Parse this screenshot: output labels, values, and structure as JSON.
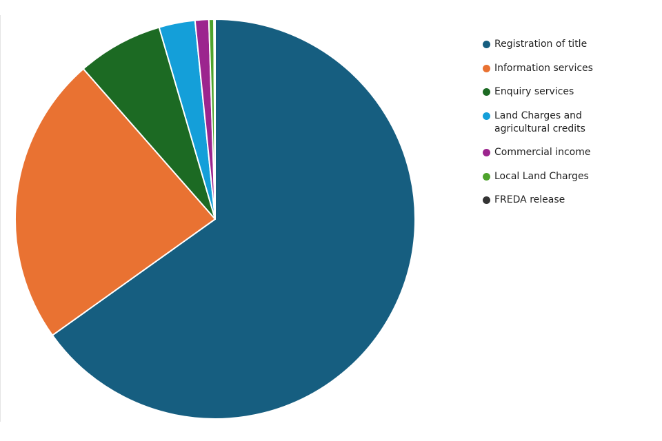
{
  "chart_data": {
    "type": "pie",
    "title": "",
    "slices": [
      {
        "label": "Registration of title",
        "value": 64.8,
        "color": "#165e80"
      },
      {
        "label": "Information services",
        "value": 23.3,
        "color": "#e97232"
      },
      {
        "label": "Enquiry services",
        "value": 6.9,
        "color": "#1c6a23"
      },
      {
        "label": "Land Charges and agricultural credits",
        "value": 2.9,
        "color": "#149fd9"
      },
      {
        "label": "Commercial income",
        "value": 1.1,
        "color": "#9c258e"
      },
      {
        "label": "Local Land Charges",
        "value": 0.4,
        "color": "#4ea32c"
      },
      {
        "label": "FREDA release",
        "value": 0.1,
        "color": "#333333"
      }
    ],
    "legend_position": "right",
    "start_angle": "top, clockwise"
  }
}
